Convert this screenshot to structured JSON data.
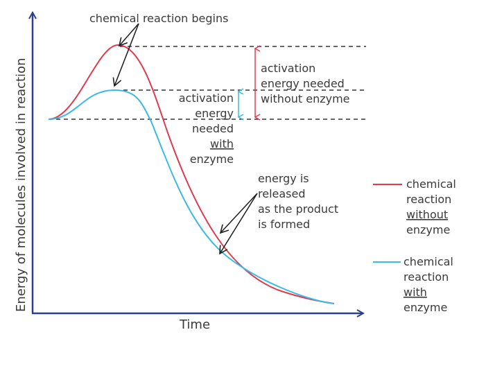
{
  "axes": {
    "y_label": "Energy of molecules involved in reaction",
    "x_label": "Time"
  },
  "annotations": {
    "reaction_begins": "chemical reaction begins",
    "activation_without": [
      "activation",
      "energy needed",
      "without enzyme"
    ],
    "activation_with": [
      "activation",
      "energy",
      "needed",
      "with",
      "enzyme"
    ],
    "energy_released": [
      "energy is",
      "released",
      "as the product",
      "is formed"
    ]
  },
  "legend": [
    {
      "lines": [
        "chemical",
        "reaction",
        "without",
        "enzyme"
      ],
      "underlined_line": 2,
      "color": "#e03a4e"
    },
    {
      "lines": [
        "chemical",
        "reaction",
        "with",
        "enzyme"
      ],
      "underlined_line": 2,
      "color": "#3ab8e6"
    }
  ],
  "colors": {
    "without_enzyme": "#e03a4e",
    "with_enzyme": "#3ab8e6",
    "axis": "#2d3f8c",
    "text": "#3a3a3a",
    "arrows": "#222222"
  }
}
